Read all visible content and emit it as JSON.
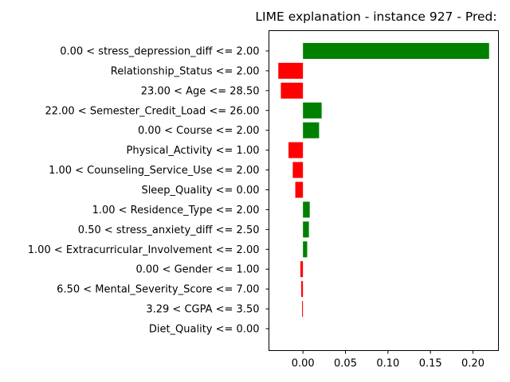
{
  "chart_data": {
    "type": "bar",
    "orientation": "horizontal",
    "title": "LIME explanation - instance 927 - Pred:",
    "xlabel": "",
    "ylabel": "",
    "xlim": [
      -0.04,
      0.23
    ],
    "xticks": [
      0.0,
      0.05,
      0.1,
      0.15,
      0.2
    ],
    "xtick_labels": [
      "0.00",
      "0.05",
      "0.10",
      "0.15",
      "0.20"
    ],
    "grid": false,
    "colors": {
      "positive": "#008000",
      "negative": "#ff0000"
    },
    "categories": [
      "0.00 < stress_depression_diff <= 2.00",
      "Relationship_Status <= 2.00",
      "23.00 < Age <= 28.50",
      "22.00 < Semester_Credit_Load <= 26.00",
      "0.00 < Course <= 2.00",
      "Physical_Activity <= 1.00",
      "1.00 < Counseling_Service_Use <= 2.00",
      "Sleep_Quality <= 0.00",
      "1.00 < Residence_Type <= 2.00",
      "0.50 < stress_anxiety_diff <= 2.50",
      "1.00 < Extracurricular_Involvement <= 2.00",
      "0.00 < Gender <= 1.00",
      "6.50 < Mental_Severity_Score <= 7.00",
      "3.29 < CGPA <= 3.50",
      "Diet_Quality <= 0.00"
    ],
    "values": [
      0.219,
      -0.029,
      -0.026,
      0.022,
      0.019,
      -0.017,
      -0.012,
      -0.009,
      0.008,
      0.007,
      0.005,
      -0.003,
      -0.002,
      -0.001,
      0.0
    ]
  }
}
